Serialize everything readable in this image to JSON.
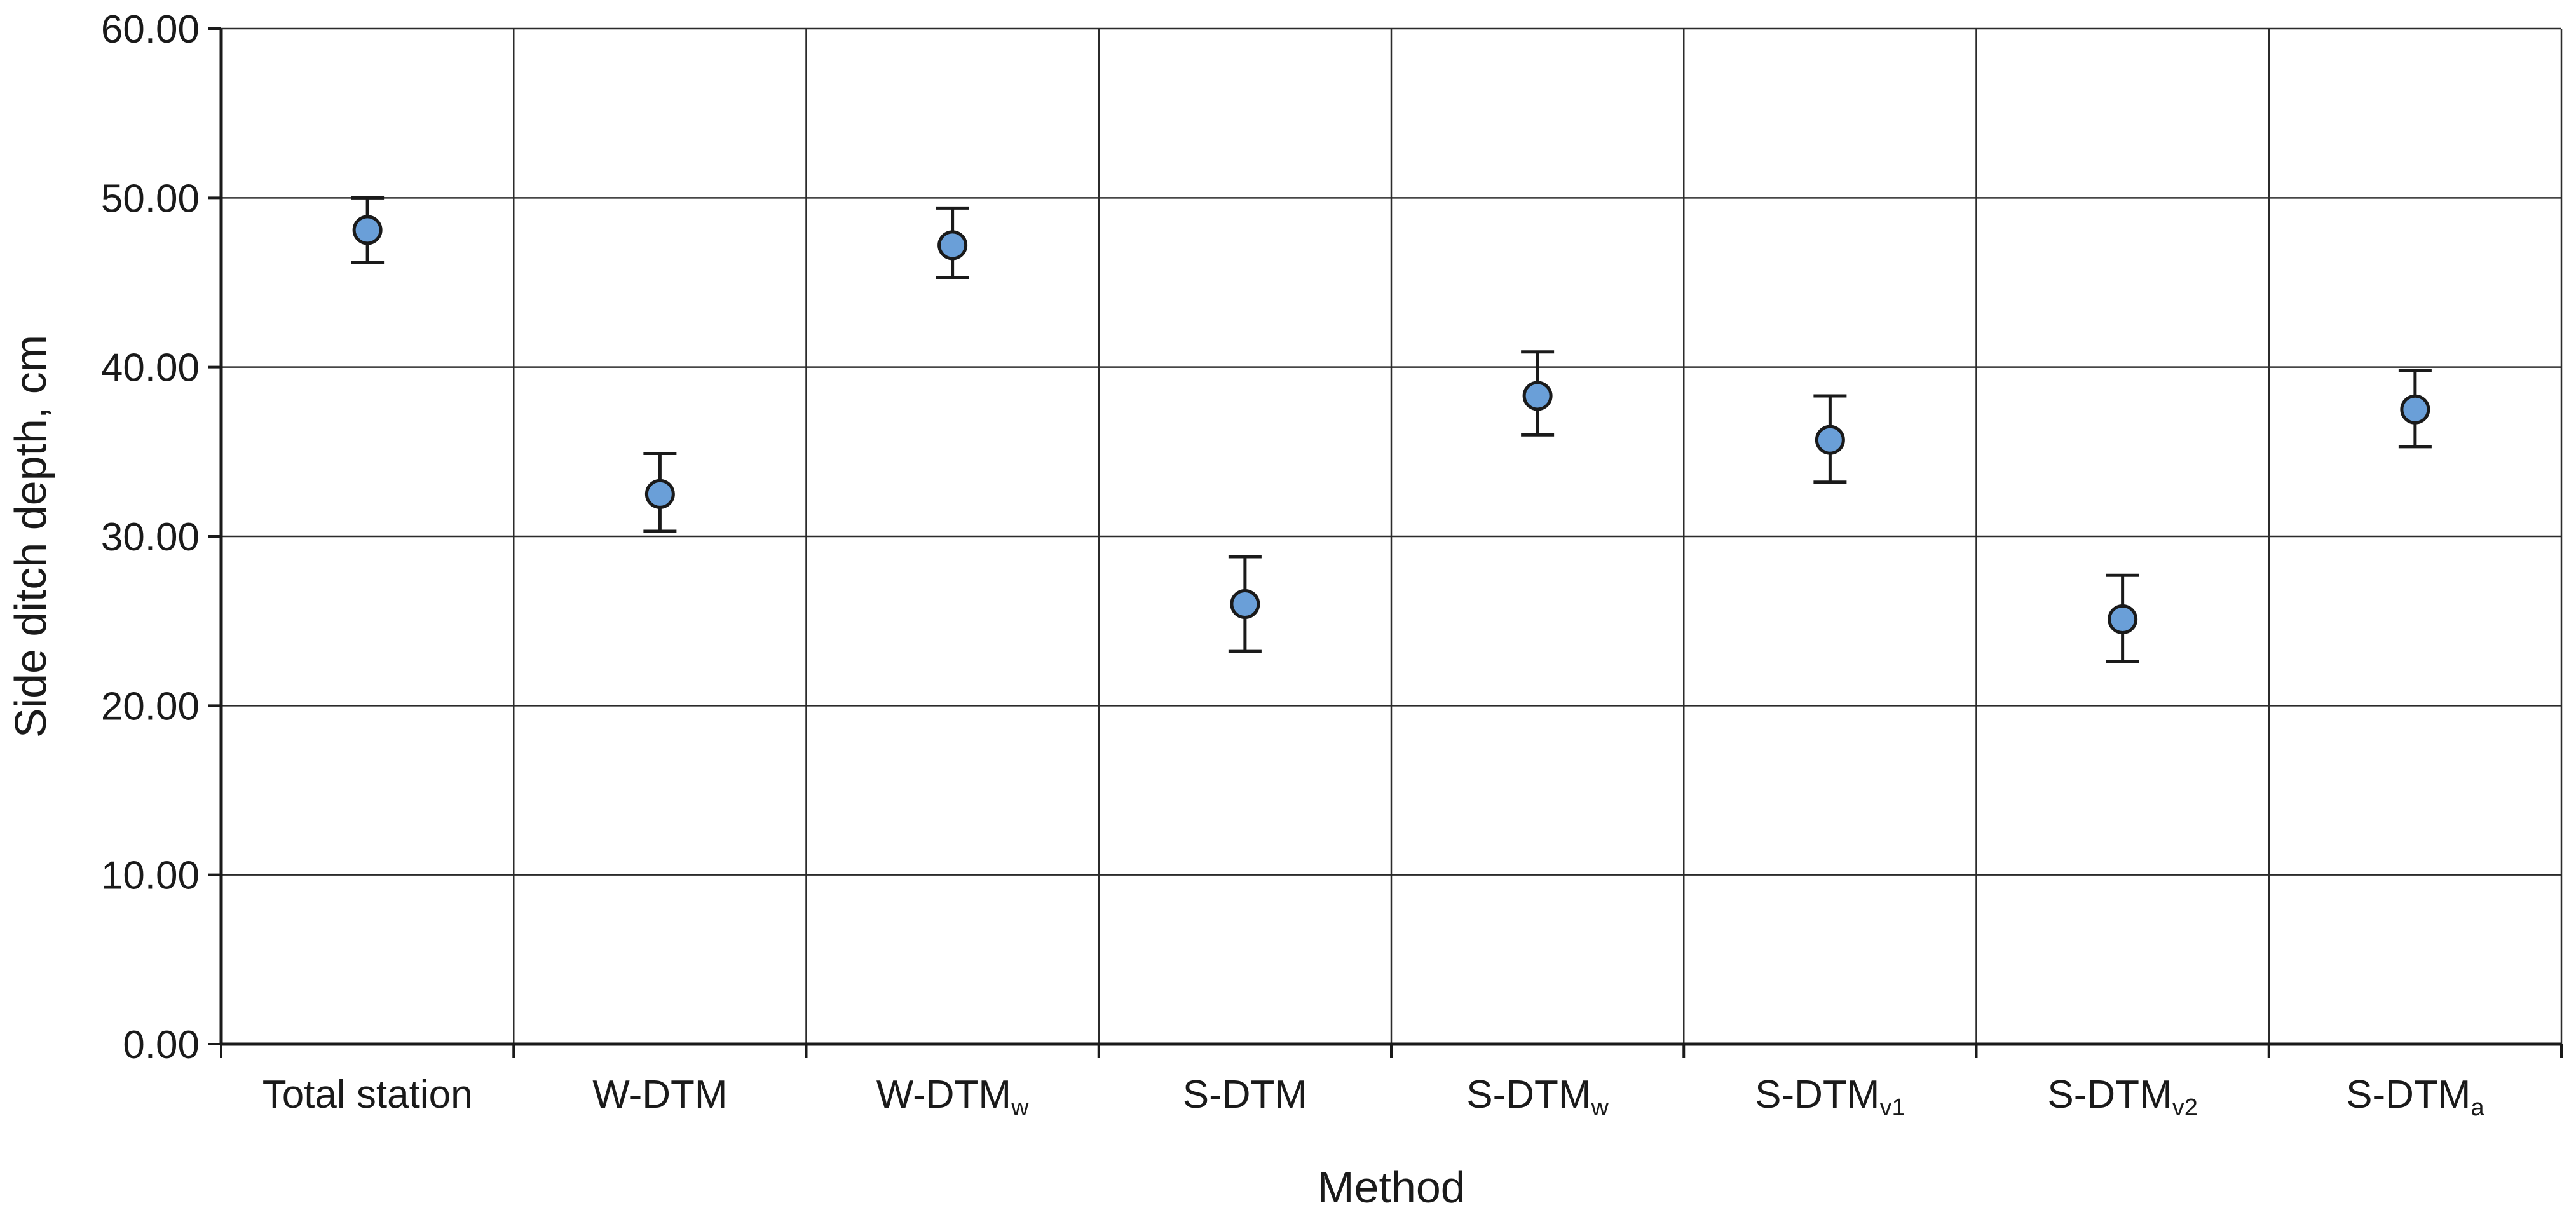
{
  "chart_data": {
    "type": "scatter",
    "title": "",
    "xlabel": "Method",
    "ylabel": "Side ditch depth, cm",
    "ylim": [
      0,
      60
    ],
    "yticks": [
      "0.00",
      "10.00",
      "20.00",
      "30.00",
      "40.00",
      "50.00",
      "60.00"
    ],
    "grid": true,
    "categories": [
      {
        "base": "Total station",
        "sub": ""
      },
      {
        "base": "W-DTM",
        "sub": ""
      },
      {
        "base": "W-DTM",
        "sub": "w"
      },
      {
        "base": "S-DTM",
        "sub": ""
      },
      {
        "base": "S-DTM",
        "sub": "w"
      },
      {
        "base": "S-DTM",
        "sub": "v1"
      },
      {
        "base": "S-DTM",
        "sub": "v2"
      },
      {
        "base": "S-DTM",
        "sub": "a"
      }
    ],
    "series": [
      {
        "values": [
          48.1,
          32.5,
          47.2,
          26.0,
          38.3,
          35.7,
          25.1,
          37.5
        ],
        "error_low": [
          46.2,
          30.3,
          45.3,
          23.2,
          36.0,
          33.2,
          22.6,
          35.3
        ],
        "error_high": [
          50.0,
          34.9,
          49.4,
          28.8,
          40.9,
          38.3,
          27.7,
          39.8
        ]
      }
    ],
    "colors": {
      "marker_fill": "#6a9fd8",
      "marker_stroke": "#1a1a1a",
      "grid": "#2b2b2b",
      "axis": "#1a1a1a"
    }
  }
}
